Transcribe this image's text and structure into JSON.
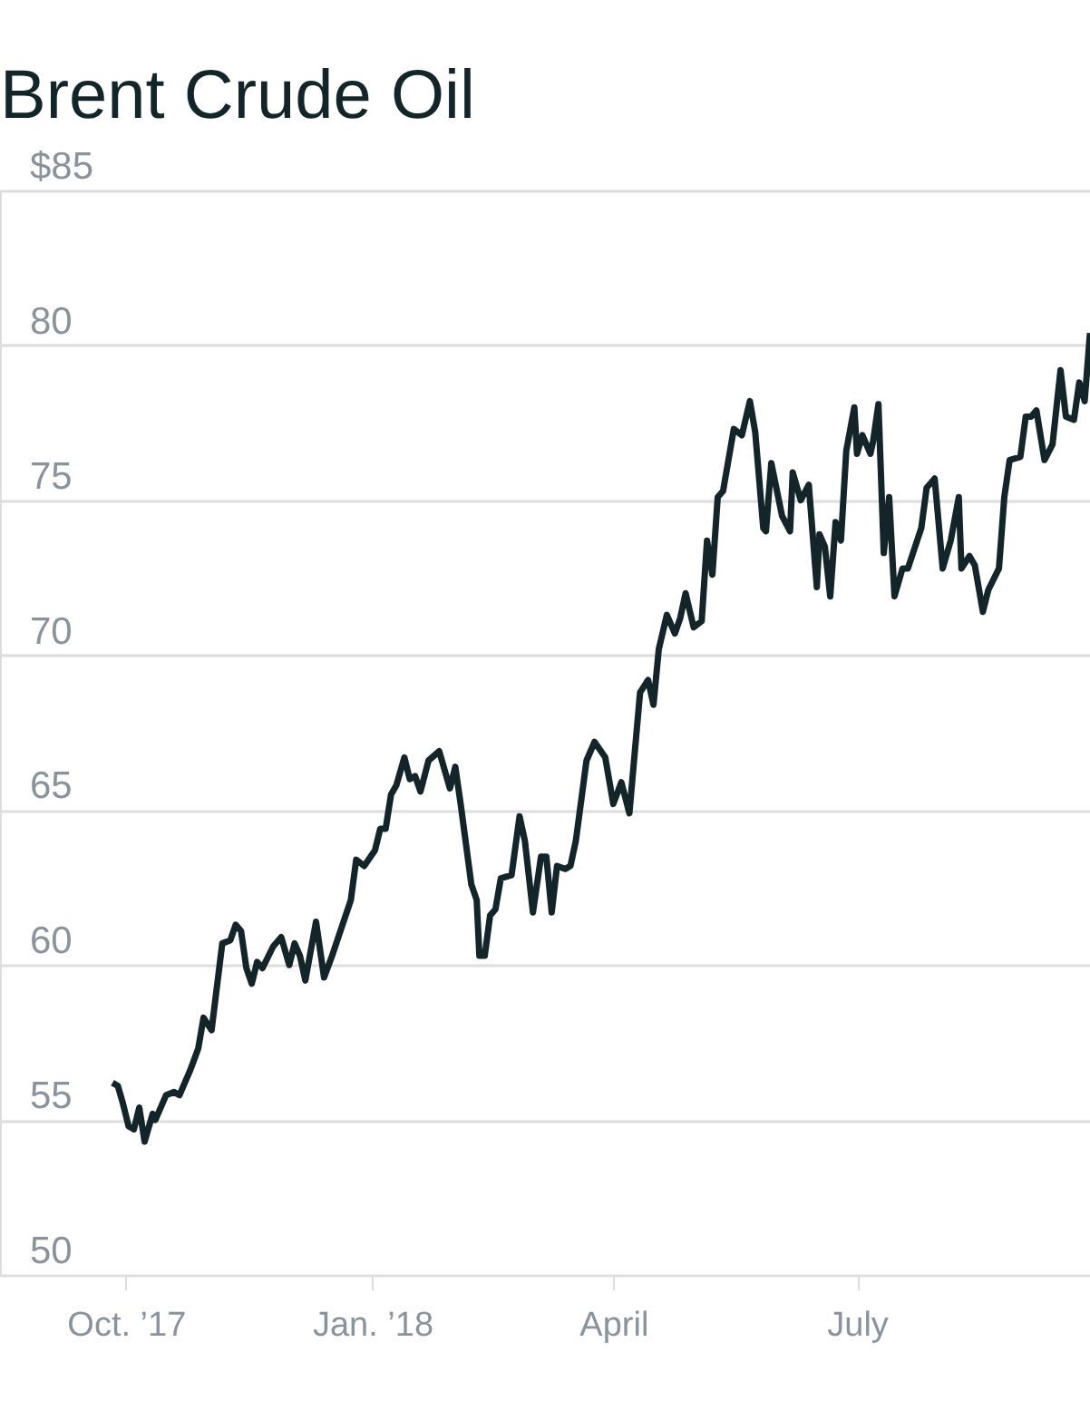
{
  "chart_data": {
    "type": "line",
    "title": "Brent Crude Oil",
    "x": [
      "2017-09-26",
      "2017-09-28",
      "2017-09-30",
      "2017-10-02",
      "2017-10-04",
      "2017-10-06",
      "2017-10-08",
      "2017-10-11",
      "2017-10-12",
      "2017-10-16",
      "2017-10-19",
      "2017-10-21",
      "2017-10-25",
      "2017-10-28",
      "2017-10-30",
      "2017-11-02",
      "2017-11-06",
      "2017-11-09",
      "2017-11-11",
      "2017-11-13",
      "2017-11-15",
      "2017-11-17",
      "2017-11-19",
      "2017-11-21",
      "2017-11-25",
      "2017-11-28",
      "2017-12-01",
      "2017-12-03",
      "2017-12-05",
      "2017-12-07",
      "2017-12-11",
      "2017-12-14",
      "2017-12-17",
      "2017-12-24",
      "2017-12-26",
      "2017-12-29",
      "2018-01-02",
      "2018-01-04",
      "2018-01-06",
      "2018-01-08",
      "2018-01-10",
      "2018-01-13",
      "2018-01-15",
      "2018-01-17",
      "2018-01-19",
      "2018-01-22",
      "2018-01-26",
      "2018-01-30",
      "2018-02-01",
      "2018-02-03",
      "2018-02-07",
      "2018-02-09",
      "2018-02-10",
      "2018-02-12",
      "2018-02-14",
      "2018-02-16",
      "2018-02-18",
      "2018-02-22",
      "2018-02-25",
      "2018-02-27",
      "2018-03-02",
      "2018-03-05",
      "2018-03-07",
      "2018-03-09",
      "2018-03-11",
      "2018-03-14",
      "2018-03-16",
      "2018-03-18",
      "2018-03-22",
      "2018-03-25",
      "2018-03-29",
      "2018-04-01",
      "2018-04-04",
      "2018-04-07",
      "2018-04-11",
      "2018-04-14",
      "2018-04-16",
      "2018-04-18",
      "2018-04-21",
      "2018-04-24",
      "2018-04-26",
      "2018-04-28",
      "2018-05-01",
      "2018-05-04",
      "2018-05-06",
      "2018-05-08",
      "2018-05-10",
      "2018-05-12",
      "2018-05-16",
      "2018-05-19",
      "2018-05-22",
      "2018-05-24",
      "2018-05-27",
      "2018-05-28",
      "2018-05-30",
      "2018-06-03",
      "2018-06-06",
      "2018-06-07",
      "2018-06-10",
      "2018-06-13",
      "2018-06-16",
      "2018-06-17",
      "2018-06-19",
      "2018-06-21",
      "2018-06-23",
      "2018-06-25",
      "2018-06-27",
      "2018-06-30",
      "2018-07-01",
      "2018-07-03",
      "2018-07-06",
      "2018-07-07",
      "2018-07-09",
      "2018-07-11",
      "2018-07-13",
      "2018-07-15",
      "2018-07-18",
      "2018-07-20",
      "2018-07-25",
      "2018-07-27",
      "2018-07-30",
      "2018-08-02",
      "2018-08-05",
      "2018-08-08",
      "2018-08-09",
      "2018-08-12",
      "2018-08-14",
      "2018-08-17",
      "2018-08-19",
      "2018-08-23",
      "2018-08-25",
      "2018-08-27",
      "2018-08-31",
      "2018-09-02",
      "2018-09-04",
      "2018-09-06",
      "2018-09-09",
      "2018-09-12",
      "2018-09-15",
      "2018-09-17",
      "2018-09-20",
      "2018-09-22",
      "2018-09-24",
      "2018-09-26"
    ],
    "series": [
      {
        "color": "#14252a",
        "values": [
          56.2,
          56.1,
          55.5,
          54.8,
          54.7,
          55.4,
          54.3,
          55.2,
          55.0,
          55.8,
          55.9,
          55.8,
          56.6,
          57.3,
          58.3,
          57.9,
          60.7,
          60.8,
          61.3,
          61.1,
          59.9,
          59.4,
          60.1,
          59.9,
          60.6,
          60.9,
          60.0,
          60.7,
          60.3,
          59.5,
          61.4,
          59.6,
          60.3,
          62.1,
          63.4,
          63.2,
          63.7,
          64.4,
          64.4,
          65.5,
          65.8,
          66.7,
          66.0,
          66.1,
          65.6,
          66.6,
          66.9,
          65.7,
          66.4,
          65.2,
          62.6,
          62.1,
          60.3,
          60.3,
          61.6,
          61.8,
          62.8,
          62.9,
          64.8,
          64.0,
          61.7,
          63.5,
          63.5,
          61.7,
          63.2,
          63.1,
          63.2,
          64.0,
          66.6,
          67.2,
          66.7,
          65.2,
          65.9,
          64.9,
          68.8,
          69.2,
          68.4,
          70.2,
          71.3,
          70.7,
          71.2,
          72.0,
          70.9,
          71.1,
          73.7,
          72.6,
          75.1,
          75.3,
          77.3,
          77.1,
          78.2,
          77.2,
          74.1,
          74.0,
          76.2,
          74.5,
          74.0,
          75.9,
          75.0,
          75.5,
          72.2,
          73.9,
          73.5,
          71.9,
          74.3,
          73.7,
          76.6,
          78.0,
          76.5,
          77.1,
          76.5,
          76.9,
          78.1,
          73.3,
          75.1,
          71.9,
          72.8,
          72.8,
          74.1,
          75.4,
          75.7,
          72.8,
          73.7,
          75.1,
          72.8,
          73.2,
          72.9,
          71.4,
          72.1,
          72.8,
          75.1,
          76.3,
          76.4,
          77.7,
          77.7,
          77.9,
          76.3,
          76.8,
          79.2,
          77.7,
          77.6,
          78.8,
          78.2,
          80.4
        ]
      }
    ],
    "xlim": [
      "2017-08-15",
      "2018-09-26"
    ],
    "xticks": [
      {
        "value": "2017-10-01",
        "label": "Oct. ’17"
      },
      {
        "value": "2018-01-01",
        "label": "Jan. ’18"
      },
      {
        "value": "2018-04-01",
        "label": "April"
      },
      {
        "value": "2018-07-01",
        "label": "July"
      }
    ],
    "ylim": [
      50,
      85
    ],
    "yticks": [
      50,
      55,
      60,
      65,
      70,
      75,
      80,
      {
        "value": 85,
        "label": "$85"
      }
    ],
    "grid": "y",
    "marker": "none",
    "line_style": "solid"
  }
}
